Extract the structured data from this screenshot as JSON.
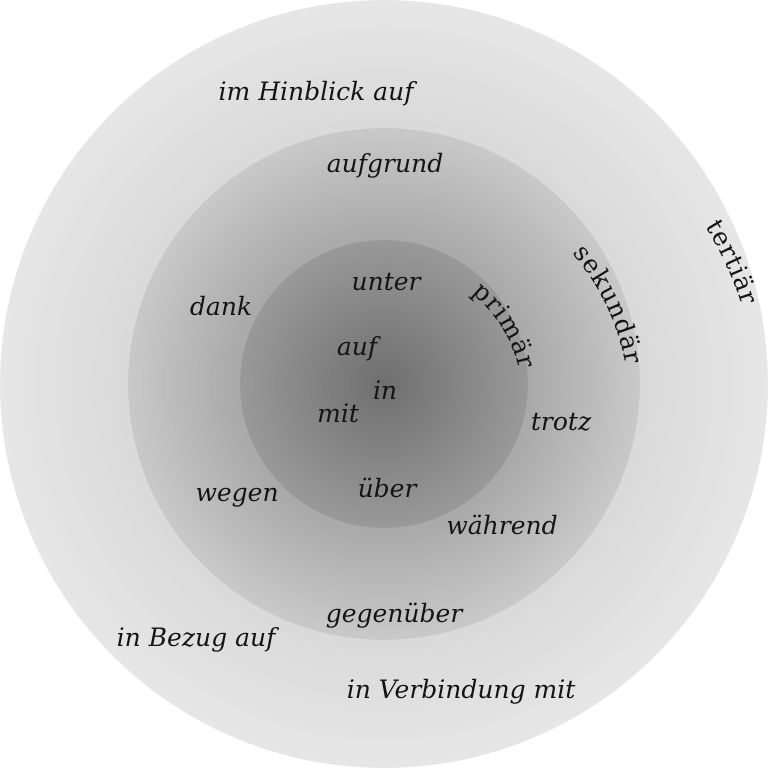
{
  "tiers": {
    "primary": "primär",
    "secondary": "sekundär",
    "tertiary": "tertiär"
  },
  "primary_words": [
    "unter",
    "auf",
    "in",
    "mit",
    "über"
  ],
  "secondary_words": [
    "aufgrund",
    "dank",
    "trotz",
    "wegen",
    "während",
    "gegenüber"
  ],
  "tertiary_words": [
    "im Hinblick auf",
    "in Bezug auf",
    "in Verbindung mit"
  ]
}
